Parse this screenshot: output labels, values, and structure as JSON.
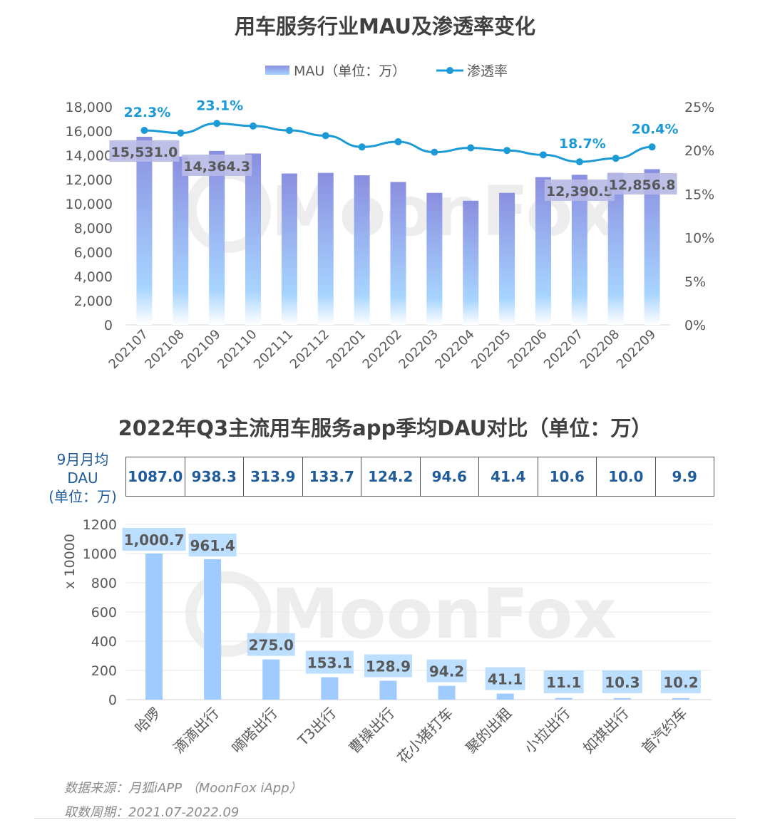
{
  "colors": {
    "mau_bar_top": "#8a8fe0",
    "mau_bar_bottom": "#a7d4ff",
    "penetration_line": "#1b9ad6",
    "dau_bar": "#9fcbff",
    "value_box": "#b7b9e6",
    "dau_box": "#b6dbff",
    "table_text": "#1f5c99",
    "watermark": "#d9d9d9"
  },
  "watermark": "MoonFox",
  "chart_data": [
    {
      "type": "bar",
      "title": "用车服务行业MAU及渗透率变化",
      "categories": [
        "202107",
        "202108",
        "202109",
        "202110",
        "202111",
        "202112",
        "202201",
        "202202",
        "202203",
        "202204",
        "202205",
        "202206",
        "202207",
        "202208",
        "202209"
      ],
      "series": [
        {
          "name": "MAU（单位：万）",
          "type": "bar",
          "axis": "left",
          "values": [
            15531.0,
            13900,
            14364.3,
            14150,
            12500,
            12550,
            12350,
            11800,
            10900,
            10250,
            10900,
            12200,
            12390.5,
            12550,
            12856.8
          ],
          "labels": [
            "15,531.0",
            null,
            "14,364.3",
            null,
            null,
            null,
            null,
            null,
            null,
            null,
            null,
            null,
            "12,390.5",
            null,
            "12,856.8"
          ]
        },
        {
          "name": "渗透率",
          "type": "line",
          "axis": "right",
          "values": [
            22.3,
            22.0,
            23.1,
            22.8,
            22.3,
            21.7,
            20.4,
            21.0,
            19.8,
            20.3,
            20.0,
            19.5,
            18.7,
            19.1,
            20.4
          ],
          "labels": [
            "22.3%",
            null,
            "23.1%",
            null,
            null,
            null,
            null,
            null,
            null,
            null,
            null,
            null,
            "18.7%",
            null,
            "20.4%"
          ]
        }
      ],
      "y_left": {
        "lim": [
          0,
          18000
        ],
        "ticks": [
          "0",
          "2,000",
          "4,000",
          "6,000",
          "8,000",
          "10,000",
          "12,000",
          "14,000",
          "16,000",
          "18,000"
        ]
      },
      "y_right": {
        "lim": [
          0,
          25
        ],
        "ticks": [
          "0%",
          "5%",
          "10%",
          "15%",
          "20%",
          "25%"
        ]
      },
      "legend": "top-center",
      "grid": true
    },
    {
      "type": "bar",
      "title": "2022年Q3主流用车服务app季均DAU对比（单位：万）",
      "categories": [
        "哈啰",
        "滴滴出行",
        "嘀嗒出行",
        "T3出行",
        "曹操出行",
        "花小猪打车",
        "聚的出租",
        "小拉出行",
        "如祺出行",
        "首汽约车"
      ],
      "values": [
        1000.7,
        961.4,
        275.0,
        153.1,
        128.9,
        94.2,
        41.1,
        11.1,
        10.3,
        10.2
      ],
      "labels": [
        "1,000.7",
        "961.4",
        "275.0",
        "153.1",
        "128.9",
        "94.2",
        "41.1",
        "11.1",
        "10.3",
        "10.2"
      ],
      "ylabel": "x 10000",
      "ylim": [
        0,
        1200
      ],
      "yticks": [
        "0",
        "200",
        "400",
        "600",
        "800",
        "1000",
        "1200"
      ],
      "grid": true,
      "table": {
        "row_label": [
          "9月月均",
          "DAU",
          "(单位：万)"
        ],
        "values": [
          "1087.0",
          "938.3",
          "313.9",
          "133.7",
          "124.2",
          "94.6",
          "41.4",
          "10.6",
          "10.0",
          "9.9"
        ]
      }
    }
  ],
  "footnotes": {
    "source": "数据来源：月狐iAPP （MoonFox iApp）",
    "period": "取数周期：2021.07-2022.09"
  }
}
